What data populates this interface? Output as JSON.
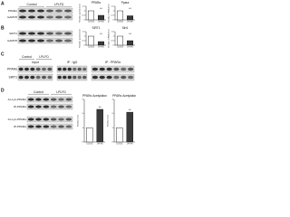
{
  "panels": [
    {
      "letter": "A",
      "headers": [
        "Control",
        "LPLFD"
      ],
      "rows": [
        "PPARα",
        "GAPDH"
      ],
      "charts": [
        {
          "type": "bar",
          "title": "PPARα",
          "ylabel": "Relative protein level",
          "categories": [
            "Control",
            "LPLFD"
          ],
          "values": [
            1,
            0.5
          ],
          "colors": [
            "#ffffff",
            "#3a3a3a"
          ],
          "ylim": [
            0,
            1.5
          ],
          "yticks": [
            0,
            0.5,
            1,
            1.5
          ],
          "annotation": "**"
        },
        {
          "type": "bar",
          "title": "Ppara",
          "ylabel": "Relative mRNA level",
          "categories": [
            "Control",
            "LPLFD"
          ],
          "values": [
            1,
            0.45
          ],
          "colors": [
            "#ffffff",
            "#3a3a3a"
          ],
          "ylim": [
            0,
            1.5
          ],
          "yticks": [
            0,
            0.5,
            1,
            1.5
          ],
          "annotation": "**"
        }
      ]
    },
    {
      "letter": "B",
      "rows": [
        "SIRT1",
        "GAPDH"
      ],
      "charts": [
        {
          "type": "bar",
          "title": "SIRT1",
          "ylabel": "Relative protein level",
          "categories": [
            "Control",
            "LPLFD"
          ],
          "values": [
            1,
            0.4
          ],
          "colors": [
            "#ffffff",
            "#3a3a3a"
          ],
          "ylim": [
            0,
            1.5
          ],
          "yticks": [
            0,
            0.5,
            1,
            1.5
          ],
          "annotation": "**"
        },
        {
          "type": "bar",
          "title": "Sirt1",
          "ylabel": "Relative mRNA level",
          "categories": [
            "Control",
            "LPLFD"
          ],
          "values": [
            1,
            0.5
          ],
          "colors": [
            "#ffffff",
            "#3a3a3a"
          ],
          "ylim": [
            0,
            1.5
          ],
          "yticks": [
            0,
            0.5,
            1,
            1.5
          ],
          "annotation": "**"
        }
      ]
    },
    {
      "letter": "C",
      "headers": [
        "Control",
        "LPLFD"
      ],
      "groups": [
        "Input",
        "IP : IgG",
        "IP : PPARα"
      ],
      "rows": [
        "PPARα",
        "SIRT1"
      ]
    },
    {
      "letter": "D",
      "headers": [
        "Control",
        "LPLFD"
      ],
      "rows": [
        "Ac-Lys-PPARα",
        "IP-PPARα",
        "Ac-Lys-PPARα",
        "IP-PPARα"
      ],
      "charts": [
        {
          "type": "bar",
          "title": "PPARα Acetylation",
          "ylabel": "Relative level",
          "categories": [
            "Control",
            "LPLFD"
          ],
          "values": [
            1,
            2.3
          ],
          "colors": [
            "#ffffff",
            "#3a3a3a"
          ],
          "ylim": [
            0,
            3
          ],
          "yticks": [
            0,
            1,
            2,
            3
          ],
          "annotation": "**"
        },
        {
          "type": "bar",
          "title": "PPARα Acetylation",
          "ylabel": "Relative level",
          "categories": [
            "Control",
            "LPLFD"
          ],
          "values": [
            1,
            2.1
          ],
          "colors": [
            "#ffffff",
            "#3a3a3a"
          ],
          "ylim": [
            0,
            3
          ],
          "yticks": [
            0,
            1,
            2,
            3
          ],
          "annotation": "**"
        }
      ]
    }
  ]
}
